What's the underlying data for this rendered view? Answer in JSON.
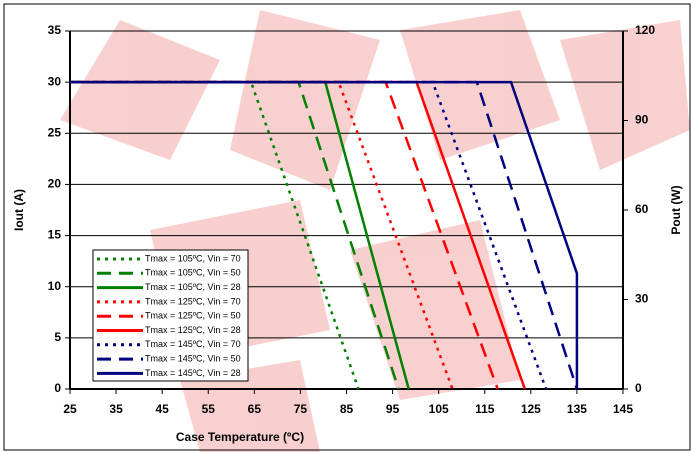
{
  "chart_data": {
    "type": "line",
    "xlabel": "Case Temperature (ºC)",
    "ylabel": "Iout (A)",
    "y2label": "Pout (W)",
    "xlim": [
      25,
      145
    ],
    "xticks": [
      25,
      35,
      45,
      55,
      65,
      75,
      85,
      95,
      105,
      115,
      125,
      135,
      145
    ],
    "ylim": [
      0,
      35
    ],
    "yticks": [
      0,
      5,
      10,
      15,
      20,
      25,
      30,
      35
    ],
    "y2lim": [
      0,
      120
    ],
    "y2ticks": [
      0,
      30,
      60,
      90,
      120
    ],
    "grid": true,
    "legend": "lower left",
    "series": [
      {
        "name": "Tmax = 105ºC, Vin = 70",
        "color": "#008000",
        "style": "dotted",
        "x": [
          25,
          64.3,
          87.6
        ],
        "values": [
          30,
          30,
          0
        ]
      },
      {
        "name": "Tmax = 105ºC, Vin = 50",
        "color": "#008000",
        "style": "dashed",
        "x": [
          25,
          74.6,
          96.3
        ],
        "values": [
          30,
          30,
          0
        ]
      },
      {
        "name": "Tmax = 105ºC, Vin = 28",
        "color": "#008000",
        "style": "solid",
        "x": [
          25,
          80.4,
          98.5
        ],
        "values": [
          30,
          30,
          0
        ]
      },
      {
        "name": "Tmax = 125ºC, Vin = 70",
        "color": "#ff0000",
        "style": "dotted",
        "x": [
          25,
          83.3,
          108
        ],
        "values": [
          30,
          30,
          0
        ]
      },
      {
        "name": "Tmax = 125ºC, Vin = 50",
        "color": "#ff0000",
        "style": "dashed",
        "x": [
          25,
          93.5,
          117.8
        ],
        "values": [
          30,
          30,
          0
        ]
      },
      {
        "name": "Tmax = 125ºC, Vin = 28",
        "color": "#ff0000",
        "style": "solid",
        "x": [
          25,
          100.2,
          123.7
        ],
        "values": [
          30,
          30,
          0
        ]
      },
      {
        "name": "Tmax = 145ºC, Vin = 70",
        "color": "#000080",
        "style": "dotted",
        "x": [
          25,
          103.7,
          128.3
        ],
        "values": [
          30,
          30,
          0
        ]
      },
      {
        "name": "Tmax = 145ºC, Vin = 50",
        "color": "#000080",
        "style": "dashed",
        "x": [
          25,
          113.3,
          135
        ],
        "values": [
          30,
          30,
          0
        ]
      },
      {
        "name": "Tmax = 145ºC, Vin = 28",
        "color": "#000080",
        "style": "solid",
        "x": [
          25,
          120.7,
          135,
          135
        ],
        "values": [
          30,
          30,
          11.3,
          0
        ]
      }
    ]
  }
}
